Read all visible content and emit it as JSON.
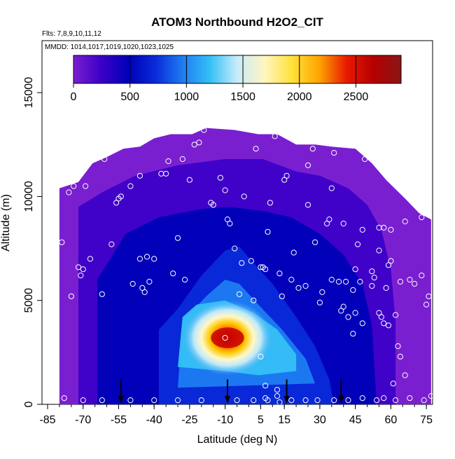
{
  "chart_data": {
    "type": "heatmap",
    "title": "ATOM3 Northbound H2O2_CIT",
    "subtitle": "Flts: 7,8,9,10,11,12",
    "annotation": "MMDD: 1014,1017,1019,1020,1023,1025",
    "xlabel": "Latitude (deg N)",
    "ylabel": "Altitude (m)",
    "xlim": [
      -85,
      80
    ],
    "ylim": [
      0,
      17500
    ],
    "xticks": [
      -85,
      -70,
      -55,
      -40,
      -25,
      -10,
      5,
      15,
      30,
      45,
      60,
      75
    ],
    "yticks": [
      0,
      5000,
      10000,
      15000
    ],
    "colorbar": {
      "min": 0,
      "max": 2900,
      "ticks": [
        0,
        500,
        1000,
        1500,
        2000,
        2500
      ],
      "colors": [
        "#7a1fd0",
        "#3d00c8",
        "#0000b8",
        "#0a2ad8",
        "#1e7cf2",
        "#35c0f6",
        "#c8ecfa",
        "#fff6c0",
        "#ffe23a",
        "#ffa400",
        "#e81a00",
        "#b40000",
        "#8a1616"
      ]
    },
    "peak": {
      "lat": -9,
      "alt": 3200,
      "value": 2700
    },
    "profile_markers_lat": [
      -54,
      -9,
      16,
      39
    ],
    "sample_points": [
      [
        -79,
        7800
      ],
      [
        -76,
        10200
      ],
      [
        -75,
        5200
      ],
      [
        -74,
        10500
      ],
      [
        -72,
        6600
      ],
      [
        -71,
        6200
      ],
      [
        -70,
        6500
      ],
      [
        -69,
        10500
      ],
      [
        -67,
        7000
      ],
      [
        -62,
        5300
      ],
      [
        -61,
        11800
      ],
      [
        -58,
        7700
      ],
      [
        -56,
        9700
      ],
      [
        -55,
        9900
      ],
      [
        -54,
        10000
      ],
      [
        -50,
        10500
      ],
      [
        -49,
        5800
      ],
      [
        -46,
        11000
      ],
      [
        -46,
        7000
      ],
      [
        -45,
        5600
      ],
      [
        -44,
        5400
      ],
      [
        -43,
        7100
      ],
      [
        -42,
        5900
      ],
      [
        -40,
        7000
      ],
      [
        -37,
        11100
      ],
      [
        -35,
        11100
      ],
      [
        -34,
        11700
      ],
      [
        -32,
        6300
      ],
      [
        -30,
        8000
      ],
      [
        -28,
        11800
      ],
      [
        -27,
        6000
      ],
      [
        -25,
        10800
      ],
      [
        -23,
        12500
      ],
      [
        -21,
        12600
      ],
      [
        -19,
        13200
      ],
      [
        -16,
        9700
      ],
      [
        -15,
        9600
      ],
      [
        -12,
        10900
      ],
      [
        -10,
        10300
      ],
      [
        -9,
        8900
      ],
      [
        -8,
        8700
      ],
      [
        -6,
        7500
      ],
      [
        -4,
        5300
      ],
      [
        -3,
        6800
      ],
      [
        -2,
        10000
      ],
      [
        1,
        6900
      ],
      [
        2,
        5000
      ],
      [
        3,
        12300
      ],
      [
        5,
        6600
      ],
      [
        6,
        6600
      ],
      [
        7,
        6500
      ],
      [
        8,
        8300
      ],
      [
        9,
        9700
      ],
      [
        11,
        12900
      ],
      [
        13,
        6300
      ],
      [
        14,
        5200
      ],
      [
        15,
        10800
      ],
      [
        16,
        11000
      ],
      [
        18,
        6000
      ],
      [
        19,
        7300
      ],
      [
        21,
        5600
      ],
      [
        24,
        5700
      ],
      [
        25,
        9600
      ],
      [
        25,
        11500
      ],
      [
        27,
        12300
      ],
      [
        28,
        7800
      ],
      [
        30,
        4900
      ],
      [
        31,
        5400
      ],
      [
        33,
        8700
      ],
      [
        34,
        8900
      ],
      [
        35,
        6000
      ],
      [
        35,
        10400
      ],
      [
        36,
        12100
      ],
      [
        38,
        5900
      ],
      [
        39,
        4500
      ],
      [
        40,
        4700
      ],
      [
        40,
        8700
      ],
      [
        41,
        5900
      ],
      [
        42,
        4200
      ],
      [
        44,
        3400
      ],
      [
        44,
        5500
      ],
      [
        45,
        4400
      ],
      [
        45,
        6500
      ],
      [
        46,
        7700
      ],
      [
        47,
        5900
      ],
      [
        48,
        3900
      ],
      [
        48,
        8400
      ],
      [
        49,
        11800
      ],
      [
        52,
        5700
      ],
      [
        52,
        6400
      ],
      [
        53,
        6100
      ],
      [
        55,
        4400
      ],
      [
        55,
        7400
      ],
      [
        55,
        8500
      ],
      [
        56,
        4200
      ],
      [
        57,
        3900
      ],
      [
        57,
        8500
      ],
      [
        58,
        5600
      ],
      [
        59,
        3800
      ],
      [
        59,
        6700
      ],
      [
        60,
        6900
      ],
      [
        60,
        8400
      ],
      [
        61,
        1000
      ],
      [
        62,
        4300
      ],
      [
        63,
        2800
      ],
      [
        64,
        5900
      ],
      [
        64,
        2300
      ],
      [
        66,
        8800
      ],
      [
        66,
        1400
      ],
      [
        68,
        6000
      ],
      [
        70,
        5800
      ],
      [
        73,
        9000
      ],
      [
        73,
        6200
      ],
      [
        75,
        4800
      ],
      [
        76,
        5200
      ]
    ],
    "surface_points": [
      [
        -78,
        300
      ],
      [
        -70,
        200
      ],
      [
        -62,
        200
      ],
      [
        -50,
        200
      ],
      [
        -40,
        200
      ],
      [
        -30,
        200
      ],
      [
        -20,
        200
      ],
      [
        -10,
        3200
      ],
      [
        -5,
        200
      ],
      [
        2,
        200
      ],
      [
        5,
        2300
      ],
      [
        7,
        900
      ],
      [
        7,
        300
      ],
      [
        8,
        200
      ],
      [
        12,
        700
      ],
      [
        12,
        400
      ],
      [
        13,
        100
      ],
      [
        18,
        200
      ],
      [
        24,
        200
      ],
      [
        29,
        200
      ],
      [
        36,
        200
      ],
      [
        42,
        200
      ],
      [
        48,
        300
      ],
      [
        54,
        200
      ],
      [
        57,
        300
      ],
      [
        62,
        200
      ],
      [
        68,
        300
      ],
      [
        74,
        200
      ],
      [
        77,
        400
      ]
    ]
  }
}
